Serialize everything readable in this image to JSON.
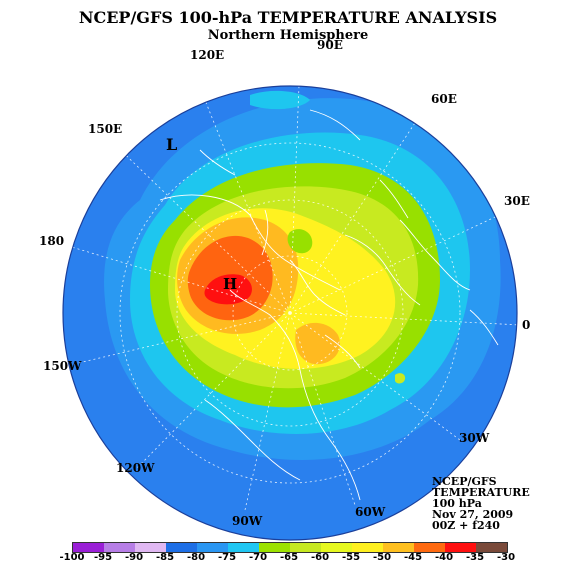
{
  "header": {
    "title": "NCEP/GFS 100-hPa TEMPERATURE ANALYSIS",
    "subtitle": "Northern Hemisphere"
  },
  "longitude_labels": {
    "lon_90e": "90E",
    "lon_120e": "120E",
    "lon_60e": "60E",
    "lon_150e": "150E",
    "lon_30e": "30E",
    "lon_180": "180",
    "lon_0": "0",
    "lon_150w": "150W",
    "lon_30w": "30W",
    "lon_120w": "120W",
    "lon_90w": "90W",
    "lon_60w": "60W"
  },
  "markers": {
    "low": "L",
    "high": "H"
  },
  "info_box": {
    "line1": "NCEP/GFS",
    "line2": "TEMPERATURE",
    "line3": "100 hPa",
    "line4": "Nov 27, 2009",
    "line5": "00Z + f240"
  },
  "colorbar": {
    "ticks": [
      "-100",
      "-95",
      "-90",
      "-85",
      "-80",
      "-75",
      "-70",
      "-65",
      "-60",
      "-55",
      "-50",
      "-45",
      "-40",
      "-35",
      "-30"
    ],
    "colors": [
      "#9a1fd6",
      "#b77ee6",
      "#e0b8f2",
      "#1e6fe6",
      "#2a96f2",
      "#20c6f2",
      "#9ce200",
      "#c6e820",
      "#e6f820",
      "#fff020",
      "#ffc020",
      "#ff6a10",
      "#ff1010",
      "#7a4a3a"
    ]
  },
  "palette": {
    "ocean_outer": "#2a80ee",
    "blue_mid": "#2a99f2",
    "cyan": "#1ec6ef",
    "green": "#98e000",
    "lime": "#c8ea20",
    "yellow_green": "#e0f820",
    "yellow": "#fff220",
    "orange": "#ffba20",
    "red_orange": "#ff6410",
    "red": "#ff1010",
    "coastline": "#ffffff"
  }
}
